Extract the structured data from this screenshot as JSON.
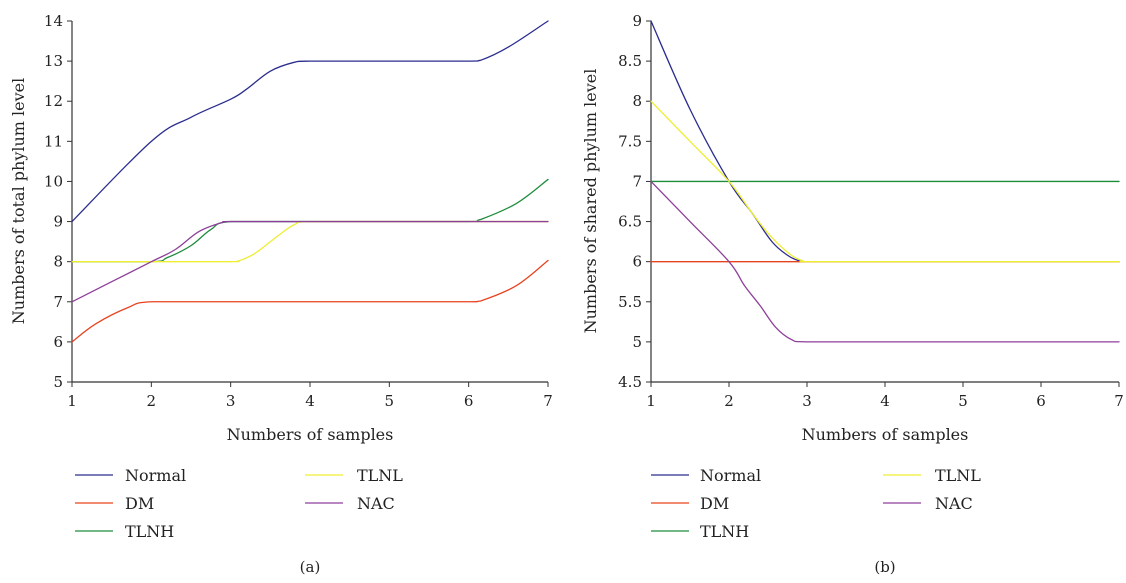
{
  "chart_data": [
    {
      "panel": "(a)",
      "type": "line",
      "xlabel": "Numbers of samples",
      "ylabel": "Numbers of total phylum level",
      "xlim": [
        1,
        7
      ],
      "ylim": [
        5,
        14
      ],
      "x_ticks": [
        1,
        2,
        3,
        4,
        5,
        6,
        7
      ],
      "y_ticks": [
        5,
        6,
        7,
        8,
        9,
        10,
        11,
        12,
        13,
        14
      ],
      "grid": false,
      "legend_position": "bottom",
      "series": [
        {
          "name": "Normal",
          "color": "#2b2d8e",
          "x": [
            1,
            2,
            2.5,
            3,
            3.2,
            3.5,
            3.8,
            4,
            5,
            6,
            6.15,
            6.5,
            7
          ],
          "y": [
            9,
            11,
            11.6,
            12.05,
            12.3,
            12.75,
            12.97,
            13,
            13,
            13,
            13.02,
            13.35,
            14
          ]
        },
        {
          "name": "DM",
          "color": "#e8431f",
          "x": [
            1,
            1.3,
            1.7,
            2,
            3,
            4,
            5,
            6,
            6.15,
            6.6,
            7
          ],
          "y": [
            6,
            6.45,
            6.85,
            7,
            7,
            7,
            7,
            7,
            7.02,
            7.4,
            8.03
          ]
        },
        {
          "name": "TLNH",
          "color": "#1f8c3c",
          "x": [
            1,
            2,
            2.2,
            2.5,
            2.75,
            3,
            4,
            5,
            6,
            6.15,
            6.6,
            7
          ],
          "y": [
            8,
            8,
            8.1,
            8.4,
            8.8,
            9,
            9,
            9,
            9,
            9.05,
            9.45,
            10.05
          ]
        },
        {
          "name": "TLNL",
          "color": "#eeee33",
          "x": [
            1,
            2,
            3,
            3.1,
            3.3,
            3.6,
            3.8,
            4,
            5,
            6,
            7
          ],
          "y": [
            8,
            8,
            8,
            8.02,
            8.2,
            8.65,
            8.92,
            9,
            9,
            9,
            9
          ]
        },
        {
          "name": "NAC",
          "color": "#8e3f9a",
          "x": [
            1,
            1.5,
            2,
            2.3,
            2.6,
            2.9,
            3,
            4,
            5,
            6,
            7
          ],
          "y": [
            7,
            7.5,
            8,
            8.3,
            8.75,
            8.98,
            9,
            9,
            9,
            9,
            9
          ]
        }
      ]
    },
    {
      "panel": "(b)",
      "type": "line",
      "xlabel": "Numbers of samples",
      "ylabel": "Numbers of shared phylum level",
      "xlim": [
        1,
        7
      ],
      "ylim": [
        4.5,
        9
      ],
      "x_ticks": [
        1,
        2,
        3,
        4,
        5,
        6,
        7
      ],
      "y_ticks": [
        4.5,
        5,
        5.5,
        6,
        6.5,
        7,
        7.5,
        8,
        8.5,
        9
      ],
      "grid": false,
      "legend_position": "bottom",
      "series": [
        {
          "name": "Normal",
          "color": "#2b2d8e",
          "x": [
            1,
            1.5,
            2,
            2.3,
            2.55,
            2.75,
            2.9,
            3,
            4,
            5,
            6,
            7
          ],
          "y": [
            9,
            7.9,
            7,
            6.6,
            6.25,
            6.08,
            6.01,
            6,
            6,
            6,
            6,
            6
          ]
        },
        {
          "name": "DM",
          "color": "#e8431f",
          "x": [
            1,
            2,
            3,
            4,
            5,
            6,
            7
          ],
          "y": [
            6,
            6,
            6,
            6,
            6,
            6,
            6
          ]
        },
        {
          "name": "TLNH",
          "color": "#1f8c3c",
          "x": [
            1,
            2,
            3,
            4,
            5,
            6,
            7
          ],
          "y": [
            7,
            7,
            7,
            7,
            7,
            7,
            7
          ]
        },
        {
          "name": "TLNL",
          "color": "#eeee33",
          "x": [
            1,
            1.5,
            2,
            2.3,
            2.55,
            2.8,
            2.95,
            3,
            4,
            5,
            6,
            7
          ],
          "y": [
            8,
            7.5,
            7,
            6.6,
            6.3,
            6.08,
            6.01,
            6,
            6,
            6,
            6,
            6
          ]
        },
        {
          "name": "NAC",
          "color": "#8e3f9a",
          "x": [
            1,
            1.5,
            2,
            2.2,
            2.4,
            2.6,
            2.8,
            3,
            4,
            5,
            6,
            7
          ],
          "y": [
            7,
            6.5,
            6,
            5.7,
            5.45,
            5.18,
            5.03,
            5,
            5,
            5,
            5,
            5
          ]
        }
      ]
    }
  ]
}
